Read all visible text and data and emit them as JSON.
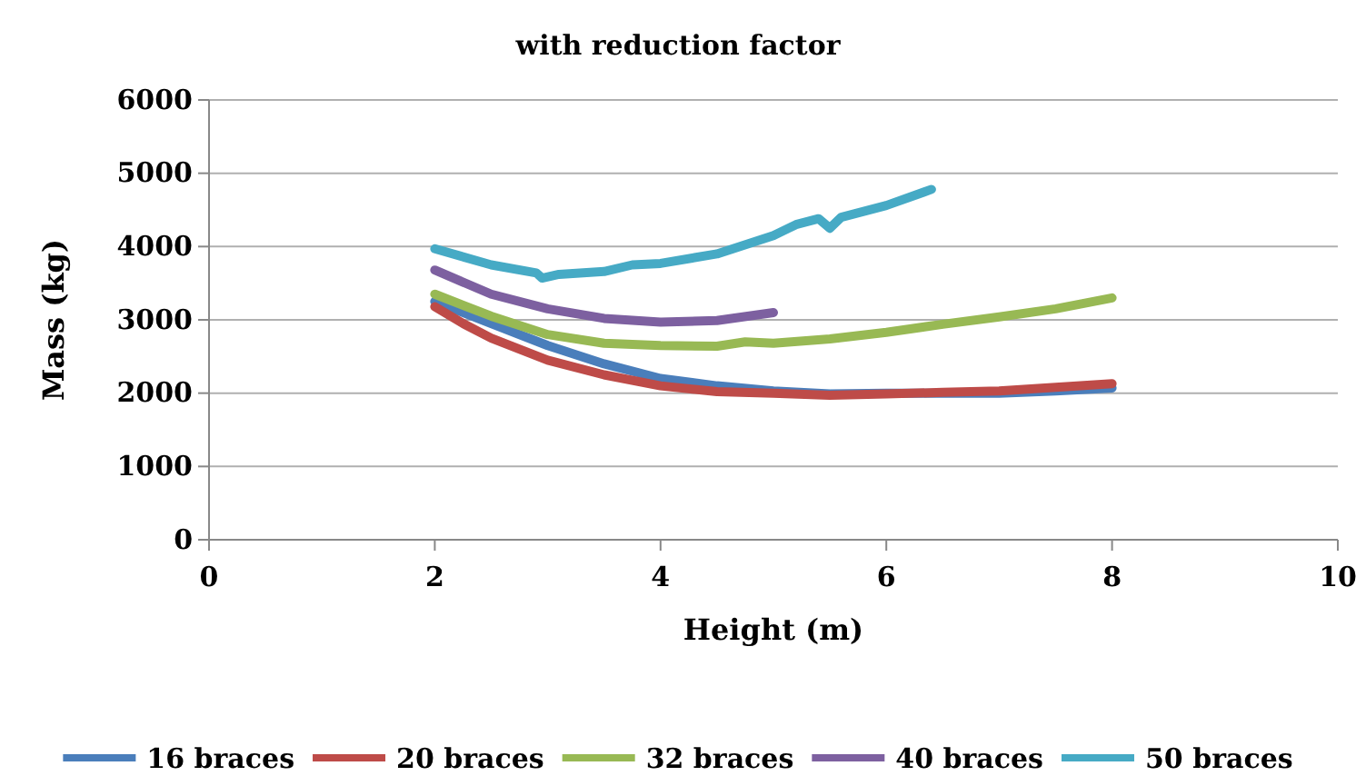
{
  "chart_data": {
    "type": "line",
    "title": "with reduction factor",
    "xlabel": "Height (m)",
    "ylabel": "Mass (kg)",
    "xlim": [
      0,
      10
    ],
    "xticks": [
      0,
      2,
      4,
      6,
      8,
      10
    ],
    "ylim": [
      0,
      6000
    ],
    "yticks": [
      0,
      1000,
      2000,
      3000,
      4000,
      5000,
      6000
    ],
    "grid": "y",
    "legend": "bottom",
    "marker": "none",
    "line_style": "solid",
    "series": [
      {
        "name": "16 braces",
        "color": "#4a7ebb",
        "x": [
          2,
          2.5,
          3,
          3.5,
          4,
          4.5,
          5,
          5.5,
          6,
          6.5,
          7,
          7.5,
          8
        ],
        "values": [
          3250,
          2950,
          2650,
          2400,
          2200,
          2100,
          2030,
          1990,
          2000,
          2000,
          2000,
          2030,
          2070
        ]
      },
      {
        "name": "20 braces",
        "color": "#be4b48",
        "x": [
          2,
          2.25,
          2.5,
          3,
          3.5,
          4,
          4.5,
          5,
          5.5,
          6,
          6.5,
          7,
          7.5,
          8
        ],
        "values": [
          3180,
          2950,
          2750,
          2450,
          2250,
          2100,
          2020,
          2000,
          1970,
          1990,
          2010,
          2030,
          2080,
          2130
        ]
      },
      {
        "name": "32 braces",
        "color": "#98b954",
        "x": [
          2,
          2.5,
          3,
          3.5,
          4,
          4.5,
          4.75,
          5,
          5.5,
          6,
          6.5,
          7,
          7.5,
          8
        ],
        "values": [
          3350,
          3050,
          2800,
          2680,
          2650,
          2640,
          2700,
          2680,
          2740,
          2830,
          2940,
          3040,
          3150,
          3300
        ]
      },
      {
        "name": "40 braces",
        "color": "#7d60a0",
        "x": [
          2,
          2.5,
          3,
          3.5,
          4,
          4.5,
          5
        ],
        "values": [
          3680,
          3350,
          3150,
          3020,
          2970,
          2990,
          3100
        ]
      },
      {
        "name": "50 braces",
        "color": "#46aac5",
        "x": [
          2,
          2.5,
          2.9,
          2.95,
          3.1,
          3.5,
          3.75,
          4,
          4.5,
          5,
          5.2,
          5.4,
          5.5,
          5.6,
          6,
          6.4
        ],
        "values": [
          3970,
          3750,
          3640,
          3570,
          3620,
          3660,
          3750,
          3770,
          3900,
          4150,
          4300,
          4380,
          4250,
          4400,
          4560,
          4780
        ]
      }
    ]
  }
}
